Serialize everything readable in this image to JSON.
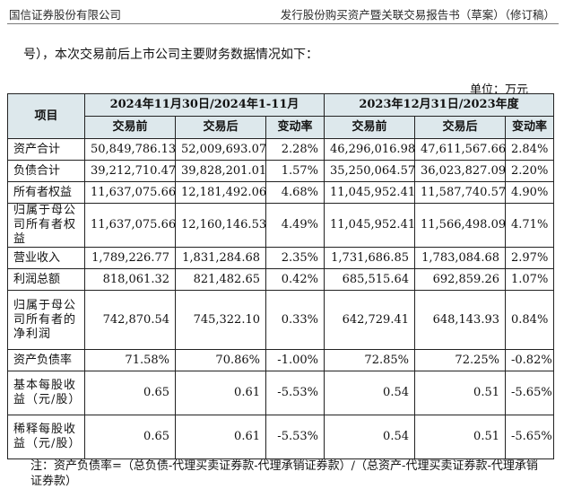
{
  "header": {
    "left": "国信证券股份有限公司",
    "right": "发行股份购买资产暨关联交易报告书（草案）（修订稿）"
  },
  "intro": "号），本次交易前后上市公司主要财务数据情况如下：",
  "unit": "单位：万元",
  "table": {
    "item_header": "项目",
    "period1": "2024年11月30日/2024年1-11月",
    "period2": "2023年12月31日/2023年度",
    "subheaders": [
      "交易前",
      "交易后",
      "变动率",
      "交易前",
      "交易后",
      "变动率"
    ],
    "rows": [
      {
        "label": "资产合计",
        "values": [
          "50,849,786.13",
          "52,009,693.07",
          "2.28%",
          "46,296,016.98",
          "47,611,567.66",
          "2.84%"
        ]
      },
      {
        "label": "负债合计",
        "values": [
          "39,212,710.47",
          "39,828,201.01",
          "1.57%",
          "35,250,064.57",
          "36,023,827.09",
          "2.20%"
        ]
      },
      {
        "label": "所有者权益",
        "values": [
          "11,637,075.66",
          "12,181,492.06",
          "4.68%",
          "11,045,952.41",
          "11,587,740.57",
          "4.90%"
        ]
      },
      {
        "label": "归属于母公司所有者权益",
        "values": [
          "11,637,075.66",
          "12,160,146.53",
          "4.49%",
          "11,045,952.41",
          "11,566,498.09",
          "4.71%"
        ]
      },
      {
        "label": "营业收入",
        "values": [
          "1,789,226.77",
          "1,831,284.68",
          "2.35%",
          "1,731,686.85",
          "1,783,084.68",
          "2.97%"
        ]
      },
      {
        "label": "利润总额",
        "values": [
          "818,061.32",
          "821,482.65",
          "0.42%",
          "685,515.64",
          "692,859.26",
          "1.07%"
        ]
      },
      {
        "label": "归属于母公司所有者的净利润",
        "values": [
          "742,870.54",
          "745,322.10",
          "0.33%",
          "642,729.41",
          "648,143.93",
          "0.84%"
        ]
      },
      {
        "label": "资产负债率",
        "values": [
          "71.58%",
          "70.86%",
          "-1.00%",
          "72.85%",
          "72.25%",
          "-0.82%"
        ]
      },
      {
        "label": "基本每股收益（元/股）",
        "values": [
          "0.65",
          "0.61",
          "-5.53%",
          "0.54",
          "0.51",
          "-5.65%"
        ]
      },
      {
        "label": "稀释每股收益（元/股）",
        "values": [
          "0.65",
          "0.61",
          "-5.53%",
          "0.54",
          "0.51",
          "-5.65%"
        ]
      }
    ]
  },
  "note": "注：资产负债率=（总负债-代理买卖证券款-代理承销证券款）/（总资产-代理买卖证券款-代理承销证券款）"
}
